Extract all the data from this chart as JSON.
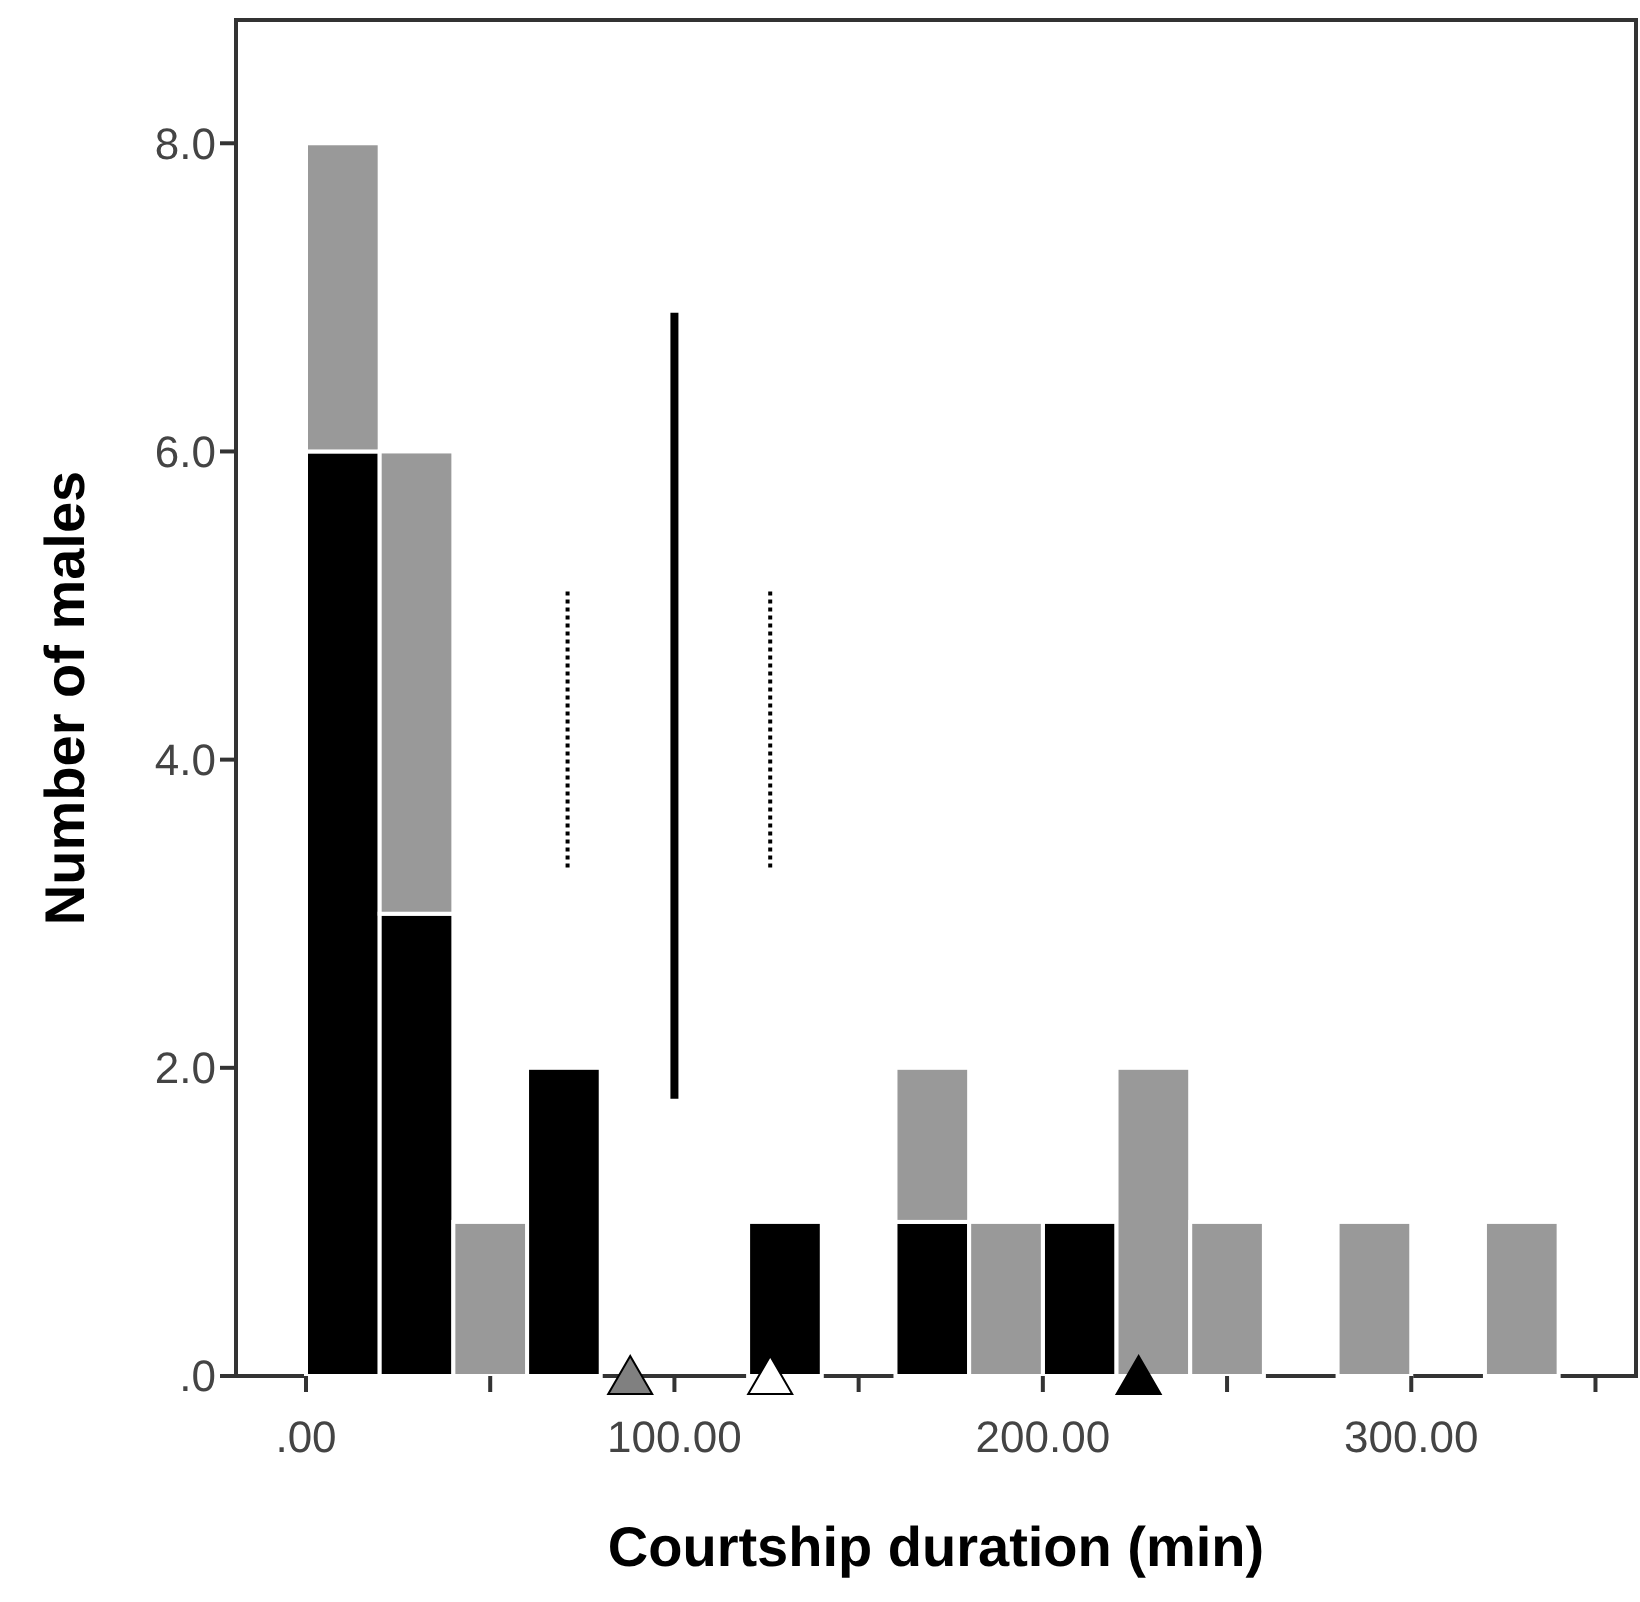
{
  "chart_data": {
    "type": "bar",
    "xlabel": "Courtship duration (min)",
    "ylabel": "Number of males",
    "stacked": true,
    "x": [
      10,
      30,
      50,
      70,
      90,
      110,
      130,
      150,
      170,
      190,
      210,
      230,
      250,
      270,
      290,
      310,
      330
    ],
    "series": [
      {
        "color": "#000000",
        "values": [
          6,
          3,
          0,
          2,
          0,
          0,
          1,
          0,
          1,
          0,
          1,
          0,
          0,
          0,
          0,
          0,
          0
        ]
      },
      {
        "color": "#999999",
        "values": [
          2,
          3,
          1,
          0,
          0,
          0,
          0,
          0,
          1,
          1,
          0,
          2,
          1,
          0,
          1,
          0,
          1
        ]
      },
      {
        "type": "line",
        "x": [
          71,
          71
        ],
        "values": [
          3.3,
          5.1
        ],
        "color": "#000000",
        "line_style": "dotted"
      },
      {
        "type": "line",
        "x": [
          100,
          100
        ],
        "values": [
          1.8,
          6.9
        ],
        "color": "#000000",
        "line_style": "solid"
      },
      {
        "type": "line",
        "x": [
          126,
          126
        ],
        "values": [
          3.3,
          5.1
        ],
        "color": "#000000",
        "line_style": "dotted"
      },
      {
        "type": "scatter",
        "x": [
          88
        ],
        "values": [
          0
        ],
        "color": "#808080",
        "marker": "triangle"
      },
      {
        "type": "scatter",
        "x": [
          126
        ],
        "values": [
          0
        ],
        "color": "#ffffff",
        "marker": "triangle"
      },
      {
        "type": "scatter",
        "x": [
          226
        ],
        "values": [
          0
        ],
        "color": "#000000",
        "marker": "triangle"
      }
    ],
    "xlim": [
      -19,
      361
    ],
    "xticks": [
      {
        "value": 0,
        "label": ".00"
      },
      {
        "value": 50,
        "label": null
      },
      {
        "value": 100,
        "label": "100.00"
      },
      {
        "value": 150,
        "label": null
      },
      {
        "value": 200,
        "label": "200.00"
      },
      {
        "value": 250,
        "label": null
      },
      {
        "value": 300,
        "label": "300.00"
      },
      {
        "value": 350,
        "label": null
      }
    ],
    "ylim": [
      0,
      8.8
    ],
    "yticks": [
      {
        "value": 0,
        "label": ".0"
      },
      {
        "value": 2,
        "label": "2.0"
      },
      {
        "value": 4,
        "label": "4.0"
      },
      {
        "value": 6,
        "label": "6.0"
      },
      {
        "value": 8,
        "label": "8.0"
      }
    ],
    "grid": false
  }
}
